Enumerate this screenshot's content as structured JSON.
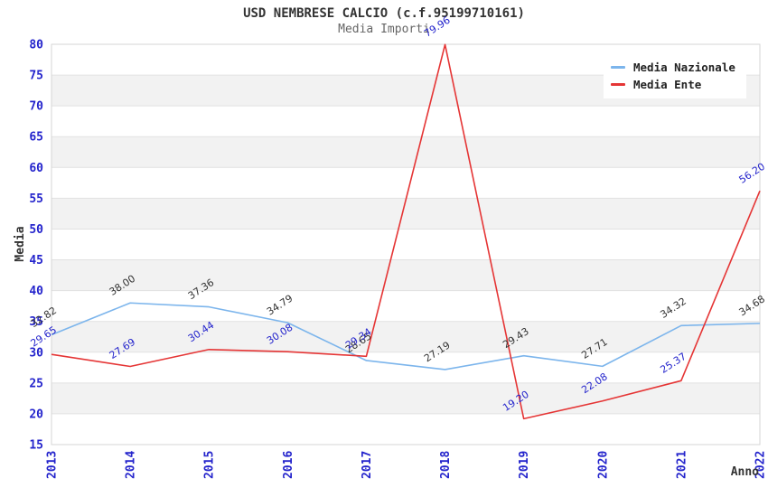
{
  "chart_data": {
    "type": "line",
    "title": "USD NEMBRESE CALCIO (c.f.95199710161)",
    "subtitle": "Media Importi",
    "x": [
      "2013",
      "2014",
      "2015",
      "2016",
      "2017",
      "2018",
      "2019",
      "2020",
      "2021",
      "2022"
    ],
    "xlabel": "Anno",
    "ylabel": "Media",
    "ylim": [
      15,
      80
    ],
    "ytick_step": 5,
    "grid": "horizontal gridlines with alternating shaded bands",
    "legend_position": "top-right",
    "series": [
      {
        "name": "Media Nazionale",
        "color": "#7cb5ec",
        "label_color": "#333333",
        "values": [
          32.82,
          38.0,
          37.36,
          34.79,
          28.65,
          27.19,
          29.43,
          27.71,
          34.32,
          34.68
        ]
      },
      {
        "name": "Media Ente",
        "color": "#e53535",
        "label_color": "#2424cc",
        "values": [
          29.65,
          27.69,
          30.44,
          30.08,
          29.34,
          79.96,
          19.2,
          22.08,
          25.37,
          56.2
        ]
      }
    ]
  },
  "colors": {
    "background": "#ffffff",
    "band": "#f2f2f2",
    "grid": "#e1e1e1",
    "border": "#d6d6d6",
    "tick_text": "#2424cc",
    "axis_title_text": "#333333",
    "title_text": "#333333",
    "subtitle_text": "#666666"
  }
}
